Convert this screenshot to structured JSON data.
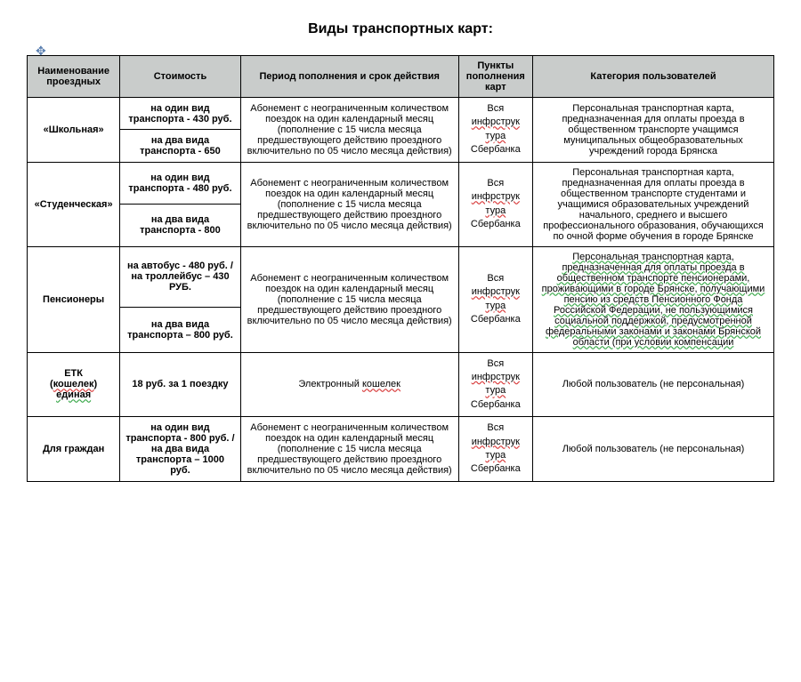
{
  "title": "Виды транспортных карт:",
  "headers": {
    "name": "Наименование проездных",
    "cost": "Стоимость",
    "period": "Период пополнения и срок действия",
    "points": "Пункты пополнения карт",
    "category": "Категория пользователей"
  },
  "period_text": "Абонемент с неограниченным количеством поездок на один календарный месяц (пополнение с 15 числа месяца предшествующего действию проездного включительно по 05 число месяца действия)",
  "ewallet_text": "Электронный ",
  "ewallet_word": "кошелек",
  "topup": {
    "l1": "Вся",
    "l2a": "инфрструк",
    "l2b": "тура",
    "l3": "Сбербанка"
  },
  "rows": {
    "school": {
      "name": "«Школьная»",
      "cost1": "на один вид транспорта - 430 руб.",
      "cost2": "на два вида транспорта - 650",
      "category": "Персональная транспортная карта, предназначенная для оплаты проезда в общественном транспорте учащимся муниципальных общеобразовательных учреждений города Брянска"
    },
    "student": {
      "name": "«Студенческая»",
      "cost1": "на один вид транспорта - 480 руб.",
      "cost2": "на два вида транспорта - 800",
      "category": "Персональная транспортная карта, предназначенная для оплаты проезда в общественном транспорте студентами и учащимися образовательных учреждений начального, среднего и высшего профессионального образования, обучающихся по очной форме обучения в городе Брянске"
    },
    "pension": {
      "name": "Пенсионеры",
      "cost1": "на автобус - 480 руб. /\nна троллейбус – 430 РУБ.",
      "cost2": "на два вида транспорта – 800 руб.",
      "category": "Персональная транспортная карта, предназначенная для оплаты проезда в общественном транспорте пенсионерами, проживающими в городе Брянске, получающими пенсию из средств Пенсионного Фонда Российской Федерации, не пользующимися социальной поддержкой, предусмотренной федеральными законами и законами Брянской области (при условии компенсации"
    },
    "etk": {
      "name_l1": "ЕТК",
      "name_l2": "(",
      "name_l2w": "кошелек",
      "name_l2b": ")",
      "name_l3": "единая",
      "cost": "18 руб. за 1 поездку",
      "category": "Любой пользователь (не персональная)"
    },
    "citizen": {
      "name": "Для граждан",
      "cost": "на один вид транспорта - 800 руб. / на два вида транспорта – 1000 руб.",
      "category": "Любой пользователь (не персональная)"
    }
  }
}
